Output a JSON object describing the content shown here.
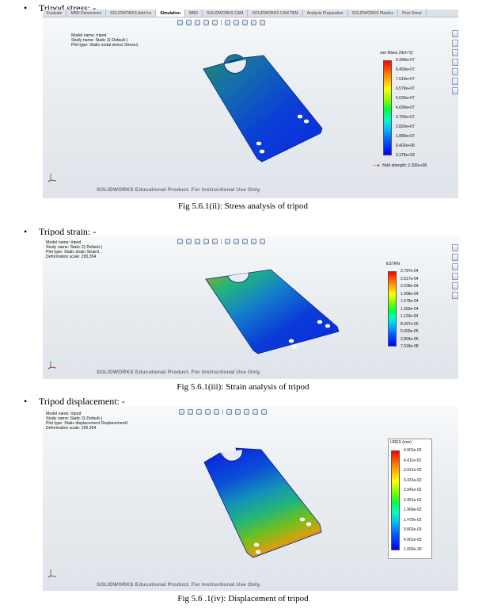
{
  "sections": [
    {
      "bullet": "Tripod stress: -",
      "caption": "Fig 5.6.1(ii): Stress analysis of tripod",
      "tabs": [
        "Evaluate",
        "MBD Dimensions",
        "SOLIDWORKS Add-Ins",
        "Simulation",
        "MBD",
        "SOLIDWORKS CAM",
        "SOLIDWORKS CAM TBM",
        "Analysis Preparation",
        "SOLIDWORKS Plastics",
        "Flow Simul"
      ],
      "info_lines": [
        "Model name: tripod",
        "Study name: Static 2(-Default-)",
        "Plot type: Static nodal stress Stress1"
      ],
      "legend_title": "von Mises (N/m^2)",
      "legend_values": [
        "9.399e+07",
        "8.459e+07",
        "7.519e+07",
        "6.579e+07",
        "5.639e+07",
        "4.699e+07",
        "3.760e+07",
        "2.820e+07",
        "1.880e+07",
        "9.402e+06",
        "3.378e+03"
      ],
      "yield_label": "Yield strength: 2.206e+08",
      "watermark": "SOLIDWORKS Educational Product. For Instructional Use Only."
    },
    {
      "bullet": "Tripod strain: -",
      "caption": "Fig 5.6.1(iii): Strain analysis of tripod",
      "info_lines": [
        "Model name: tripod",
        "Study name: Static 2(-Default-)",
        "Plot type: Static strain Strain1",
        "Deformation scale: 295.354"
      ],
      "legend_title": "ESTRN",
      "legend_values": [
        "2.797e-04",
        "2.517e-04",
        "2.238e-04",
        "1.958e-04",
        "1.678e-04",
        "1.399e-04",
        "1.119e-04",
        "8.397e-05",
        "5.600e-05",
        "2.804e-05",
        "7.918e-08"
      ],
      "watermark": "SOLIDWORKS Educational Product. For Instructional Use Only."
    },
    {
      "bullet": "Tripod displacement: -",
      "caption": "Fig 5.6 .1(iv): Displacement of tripod",
      "info_lines": [
        "Model name: tripod",
        "Study name: Static 2(-Default-)",
        "Plot type: Static displacement Displacement1",
        "Deformation scale: 295.354"
      ],
      "legend_title": "URES (mm)",
      "legend_values": [
        "4.901e-02",
        "4.411e-02",
        "3.921e-02",
        "3.431e-02",
        "2.941e-02",
        "2.451e-02",
        "1.960e-02",
        "1.470e-02",
        "9.802e-03",
        "4.901e-03",
        "1.000e-30"
      ],
      "watermark": "SOLIDWORKS Educational Product. For Instructional Use Only."
    }
  ],
  "colors": {
    "max": "#ff0000",
    "min": "#0000ff",
    "yield_arrow": "#d40000",
    "viewport_bg": "#e9edf1"
  }
}
